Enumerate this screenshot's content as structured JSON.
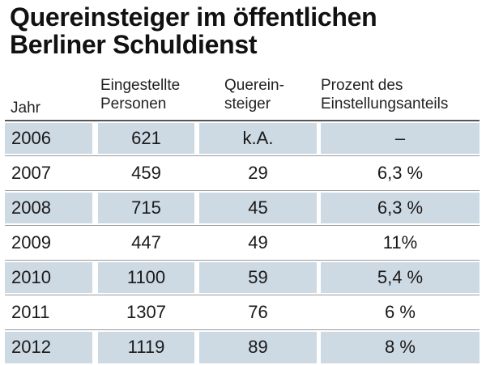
{
  "title": {
    "line1": "Quereinsteiger im öffentlichen",
    "line2": "Berliner Schuldienst"
  },
  "headers": {
    "jahr": "Jahr",
    "eingestellte": [
      "Eingestellte",
      "Personen"
    ],
    "quereinsteiger": [
      "Querein-",
      "steiger"
    ],
    "prozent": [
      "Prozent des",
      "Einstellungsanteils"
    ]
  },
  "chart_data": {
    "type": "table",
    "title": "Quereinsteiger im öffentlichen Berliner Schuldienst",
    "columns": [
      "Jahr",
      "Eingestellte Personen",
      "Querein- steiger",
      "Prozent des Einstellungsanteils"
    ],
    "rows": [
      {
        "jahr": "2006",
        "eingestellte": "621",
        "quereinsteiger": "k.A.",
        "prozent": "–"
      },
      {
        "jahr": "2007",
        "eingestellte": "459",
        "quereinsteiger": "29",
        "prozent": "6,3 %"
      },
      {
        "jahr": "2008",
        "eingestellte": "715",
        "quereinsteiger": "45",
        "prozent": "6,3 %"
      },
      {
        "jahr": "2009",
        "eingestellte": "447",
        "quereinsteiger": "49",
        "prozent": "11%"
      },
      {
        "jahr": "2010",
        "eingestellte": "1100",
        "quereinsteiger": "59",
        "prozent": "5,4 %"
      },
      {
        "jahr": "2011",
        "eingestellte": "1307",
        "quereinsteiger": "76",
        "prozent": "6 %"
      },
      {
        "jahr": "2012",
        "eingestellte": "1119",
        "quereinsteiger": "89",
        "prozent": "8 %"
      }
    ]
  },
  "colors": {
    "row_shade": "#cdd9e3",
    "text": "#1a1a1a"
  }
}
